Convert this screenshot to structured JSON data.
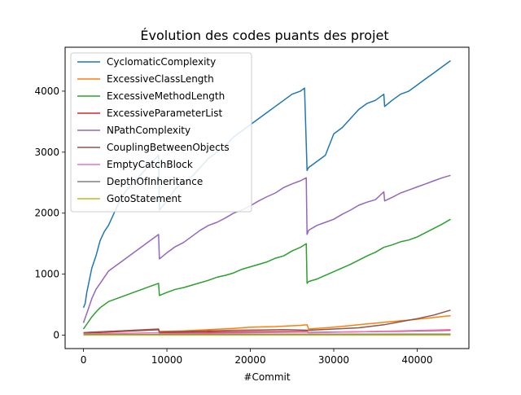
{
  "chart_data": {
    "type": "line",
    "title": "Évolution des codes puants des projet",
    "xlabel": "#Commit",
    "ylabel": "",
    "xlim": [
      -2200,
      46200
    ],
    "ylim": [
      -220,
      4720
    ],
    "xticks": [
      0,
      10000,
      20000,
      30000,
      40000
    ],
    "yticks": [
      0,
      1000,
      2000,
      3000,
      4000
    ],
    "legend_position": "upper-left",
    "grid": false,
    "series": [
      {
        "name": "CyclomaticComplexity",
        "color": "#1f77b4",
        "x": [
          0,
          200,
          400,
          700,
          1000,
          1500,
          2000,
          2500,
          3000,
          3500,
          4000,
          5000,
          6000,
          7000,
          8000,
          9000,
          9100,
          10000,
          11000,
          12000,
          13000,
          14000,
          15000,
          16000,
          17000,
          18000,
          18500,
          19000,
          20000,
          21000,
          22000,
          23000,
          24000,
          25000,
          26000,
          26500,
          26800,
          27000,
          28000,
          29000,
          30000,
          31000,
          32000,
          33000,
          34000,
          35000,
          36000,
          36100,
          37000,
          38000,
          39000,
          40000,
          41000,
          42000,
          43000,
          44000
        ],
        "y": [
          450,
          520,
          700,
          900,
          1100,
          1300,
          1550,
          1700,
          1800,
          1950,
          2100,
          2350,
          2500,
          2650,
          2800,
          2950,
          2050,
          2200,
          2400,
          2500,
          2600,
          2750,
          2900,
          3000,
          3100,
          3250,
          3300,
          3350,
          3450,
          3550,
          3650,
          3750,
          3850,
          3950,
          4000,
          4050,
          2700,
          2750,
          2850,
          2950,
          3300,
          3400,
          3550,
          3700,
          3800,
          3850,
          3950,
          3750,
          3850,
          3950,
          4000,
          4100,
          4200,
          4300,
          4400,
          4500
        ]
      },
      {
        "name": "ExcessiveClassLength",
        "color": "#ff7f0e",
        "x": [
          0,
          1000,
          3000,
          5000,
          8000,
          9000,
          9100,
          12000,
          15000,
          18000,
          20000,
          23000,
          26000,
          26800,
          27000,
          30000,
          33000,
          36000,
          40000,
          44000
        ],
        "y": [
          40,
          50,
          60,
          70,
          85,
          90,
          60,
          70,
          90,
          110,
          130,
          140,
          160,
          170,
          100,
          130,
          170,
          210,
          260,
          320
        ]
      },
      {
        "name": "ExcessiveMethodLength",
        "color": "#2ca02c",
        "x": [
          0,
          500,
          1000,
          1500,
          2000,
          3000,
          4000,
          5000,
          6000,
          7000,
          8000,
          9000,
          9100,
          10000,
          11000,
          12000,
          13000,
          14000,
          15000,
          16000,
          17000,
          18000,
          19000,
          20000,
          21000,
          22000,
          23000,
          24000,
          25000,
          26000,
          26700,
          26800,
          27000,
          28000,
          29000,
          30000,
          31000,
          32000,
          33000,
          34000,
          35000,
          36000,
          37000,
          38000,
          39000,
          40000,
          41000,
          42000,
          43000,
          44000
        ],
        "y": [
          100,
          200,
          300,
          380,
          450,
          550,
          600,
          650,
          700,
          750,
          800,
          850,
          650,
          700,
          750,
          780,
          820,
          860,
          900,
          950,
          980,
          1020,
          1080,
          1120,
          1160,
          1200,
          1260,
          1300,
          1380,
          1440,
          1500,
          850,
          880,
          920,
          980,
          1040,
          1100,
          1160,
          1230,
          1300,
          1360,
          1440,
          1480,
          1530,
          1560,
          1610,
          1680,
          1750,
          1820,
          1900
        ]
      },
      {
        "name": "ExcessiveParameterList",
        "color": "#d62728",
        "x": [
          0,
          3000,
          6000,
          9000,
          9100,
          15000,
          20000,
          26800,
          27000,
          33000,
          38000,
          44000
        ],
        "y": [
          30,
          50,
          70,
          90,
          40,
          50,
          55,
          60,
          45,
          55,
          65,
          80
        ]
      },
      {
        "name": "NPathComplexity",
        "color": "#9467bd",
        "x": [
          0,
          500,
          1000,
          1500,
          2000,
          3000,
          4000,
          5000,
          6000,
          7000,
          8000,
          9000,
          9100,
          10000,
          11000,
          12000,
          13000,
          14000,
          15000,
          16000,
          17000,
          18000,
          19000,
          20000,
          21000,
          22000,
          23000,
          24000,
          25000,
          26000,
          26700,
          26800,
          27000,
          28000,
          29000,
          30000,
          31000,
          32000,
          33000,
          34000,
          35000,
          36000,
          36100,
          37000,
          38000,
          39000,
          40000,
          41000,
          42000,
          43000,
          44000
        ],
        "y": [
          200,
          400,
          600,
          750,
          850,
          1050,
          1150,
          1250,
          1350,
          1450,
          1550,
          1650,
          1250,
          1350,
          1450,
          1520,
          1620,
          1720,
          1800,
          1850,
          1920,
          2000,
          2050,
          2120,
          2200,
          2270,
          2330,
          2420,
          2480,
          2530,
          2580,
          1650,
          1720,
          1800,
          1850,
          1900,
          1980,
          2050,
          2130,
          2180,
          2220,
          2350,
          2200,
          2260,
          2330,
          2380,
          2430,
          2480,
          2530,
          2580,
          2620
        ]
      },
      {
        "name": "CouplingBetweenObjects",
        "color": "#8c564b",
        "x": [
          0,
          3000,
          6000,
          9000,
          9100,
          12000,
          15000,
          18000,
          21000,
          24000,
          27000,
          30000,
          33000,
          36000,
          38000,
          40000,
          42000,
          44000
        ],
        "y": [
          40,
          60,
          80,
          100,
          50,
          60,
          70,
          80,
          85,
          90,
          80,
          100,
          120,
          170,
          220,
          270,
          330,
          410
        ]
      },
      {
        "name": "EmptyCatchBlock",
        "color": "#e377c2",
        "x": [
          0,
          5000,
          9000,
          9100,
          15000,
          20000,
          26800,
          27000,
          33000,
          38000,
          44000
        ],
        "y": [
          20,
          30,
          40,
          25,
          30,
          40,
          50,
          40,
          55,
          70,
          90
        ]
      },
      {
        "name": "DepthOfInheritance",
        "color": "#7f7f7f",
        "x": [
          0,
          10000,
          20000,
          30000,
          44000
        ],
        "y": [
          10,
          12,
          15,
          15,
          18
        ]
      },
      {
        "name": "GotoStatement",
        "color": "#bcbd22",
        "x": [
          0,
          44000
        ],
        "y": [
          0,
          0
        ]
      }
    ]
  }
}
